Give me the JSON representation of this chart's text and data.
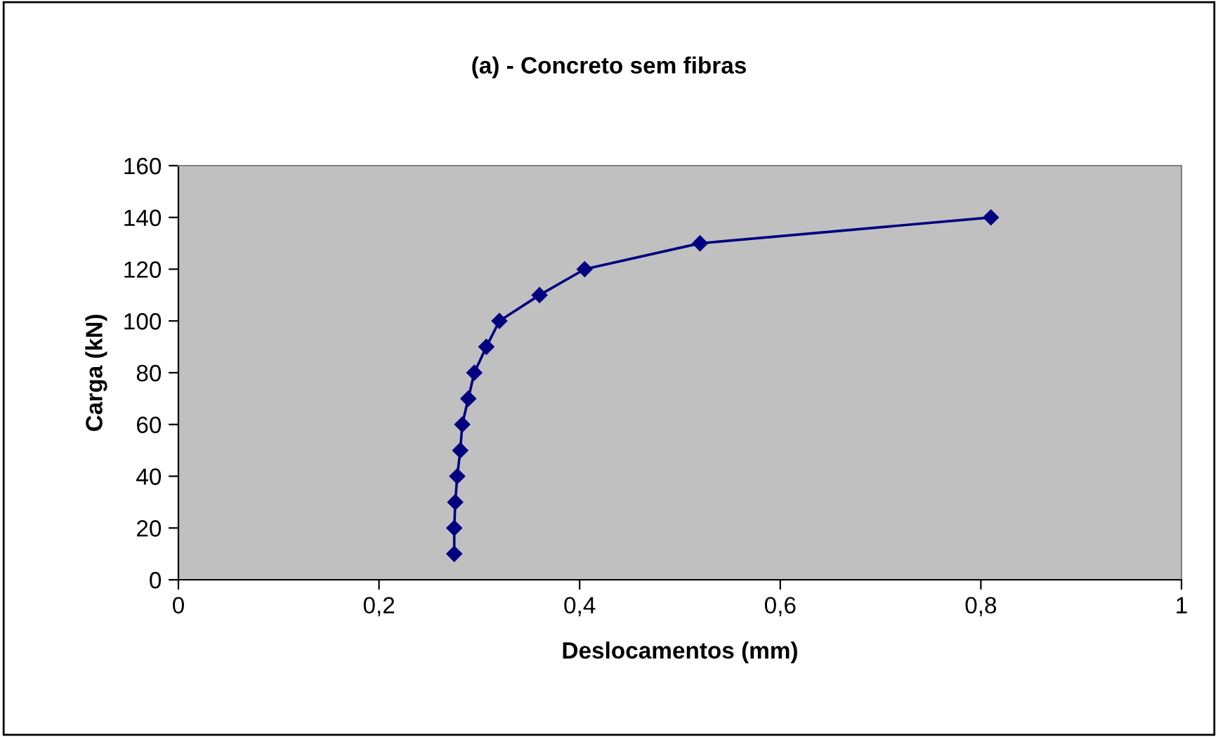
{
  "chart_data": {
    "type": "line",
    "title": "(a) - Concreto sem fibras",
    "xlabel": "Deslocamentos (mm)",
    "ylabel": "Carga (kN)",
    "x": [
      0.275,
      0.275,
      0.276,
      0.278,
      0.281,
      0.283,
      0.289,
      0.295,
      0.307,
      0.32,
      0.36,
      0.405,
      0.52,
      0.81
    ],
    "series": [
      {
        "color": "#000080",
        "values": [
          10,
          20,
          30,
          40,
          50,
          60,
          70,
          80,
          90,
          100,
          110,
          120,
          130,
          140
        ]
      }
    ],
    "xlim": [
      0,
      1
    ],
    "xticks": [
      {
        "value": 0,
        "label": "0"
      },
      {
        "value": 0.2,
        "label": "0,2"
      },
      {
        "value": 0.4,
        "label": "0,4"
      },
      {
        "value": 0.6,
        "label": "0,6"
      },
      {
        "value": 0.8,
        "label": "0,8"
      },
      {
        "value": 1,
        "label": "1"
      }
    ],
    "ylim": [
      0,
      160
    ],
    "yticks": [
      0,
      20,
      40,
      60,
      80,
      100,
      120,
      140,
      160
    ],
    "marker": "diamond",
    "line_style": "solid",
    "grid": false,
    "legend": false
  }
}
